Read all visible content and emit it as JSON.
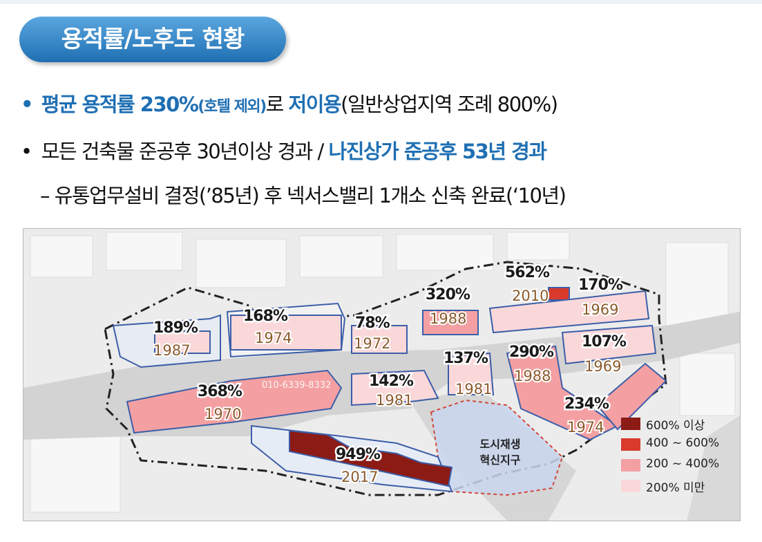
{
  "title": "용적률/노후도 현황",
  "bullets": {
    "b1": {
      "em": "평균 용적률 230%",
      "paren": "(호텔 제외)",
      "mid": "로 ",
      "em2": "저이용",
      "rest": "(일반상업지역 조례  800%)"
    },
    "b2": {
      "plain": "모든 건축물 준공후 30년이상 경과 / ",
      "em": "나진상가 준공후 53년 경과"
    },
    "sub": "– 유통업무설비 결정(’85년) 후 넥서스밸리 1개소 신축 완료(‘10년)"
  },
  "map": {
    "blocks": [
      {
        "pct": "189%",
        "year": "1987",
        "color": "#fad8da"
      },
      {
        "pct": "168%",
        "year": "1974",
        "color": "#fad8da"
      },
      {
        "pct": "78%",
        "year": "1972",
        "color": "#fad8da"
      },
      {
        "pct": "320%",
        "year": "1988",
        "color": "#f4a0a2"
      },
      {
        "pct": "562%",
        "year": "2010",
        "color": "#d93a2b"
      },
      {
        "pct": "170%",
        "year": "1969",
        "color": "#fad8da"
      },
      {
        "pct": "368%",
        "year": "1970",
        "color": "#f4a0a2"
      },
      {
        "pct": "142%",
        "year": "1981",
        "color": "#fad8da"
      },
      {
        "pct": "137%",
        "year": "1981",
        "color": "#fad8da"
      },
      {
        "pct": "290%",
        "year": "1988",
        "color": "#f4a0a2"
      },
      {
        "pct": "107%",
        "year": "1969",
        "color": "#fad8da"
      },
      {
        "pct": "234%",
        "year": "1974",
        "color": "#f4a0a2"
      },
      {
        "pct": "949%",
        "year": "2017",
        "color": "#8c1a15"
      }
    ],
    "watermark": "010-6339-8332",
    "zone": {
      "line1": "도시재생",
      "line2": "혁신지구"
    }
  },
  "legend": [
    {
      "label": "600% 이상",
      "color": "#8c1a15"
    },
    {
      "label": "400 ~ 600%",
      "color": "#d93a2b"
    },
    {
      "label": "200 ~ 400%",
      "color": "#f4a0a2"
    },
    {
      "label": "200% 미만",
      "color": "#fad8da"
    }
  ]
}
